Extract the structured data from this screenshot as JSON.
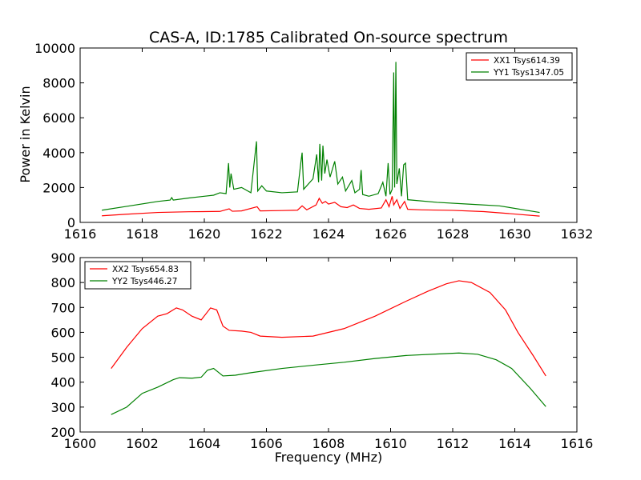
{
  "title": "CAS-A, ID:1785 Calibrated On-source spectrum",
  "ylabel": "Power in Kelvin",
  "xlabel": "Frequency (MHz)",
  "chart_data": [
    {
      "type": "line",
      "xlim": [
        1616,
        1632
      ],
      "ylim": [
        0,
        10000
      ],
      "xticks": [
        "1616",
        "1618",
        "1620",
        "1622",
        "1624",
        "1626",
        "1628",
        "1630",
        "1632"
      ],
      "yticks": [
        "0",
        "2000",
        "4000",
        "6000",
        "8000",
        "10000"
      ],
      "legend_position": "top-right",
      "grid": false,
      "series": [
        {
          "name": "XX1 Tsys614.39",
          "color": "#ff0000",
          "points": [
            [
              1616.7,
              380
            ],
            [
              1617.5,
              470
            ],
            [
              1618.5,
              570
            ],
            [
              1619.5,
              610
            ],
            [
              1620.5,
              630
            ],
            [
              1620.8,
              780
            ],
            [
              1620.9,
              640
            ],
            [
              1621.2,
              660
            ],
            [
              1621.7,
              900
            ],
            [
              1621.8,
              660
            ],
            [
              1622.5,
              680
            ],
            [
              1623.0,
              700
            ],
            [
              1623.15,
              950
            ],
            [
              1623.3,
              720
            ],
            [
              1623.6,
              1000
            ],
            [
              1623.7,
              1380
            ],
            [
              1623.8,
              1100
            ],
            [
              1623.9,
              1200
            ],
            [
              1624.0,
              1050
            ],
            [
              1624.2,
              1150
            ],
            [
              1624.4,
              900
            ],
            [
              1624.6,
              850
            ],
            [
              1624.8,
              1000
            ],
            [
              1625.0,
              800
            ],
            [
              1625.3,
              750
            ],
            [
              1625.7,
              830
            ],
            [
              1625.85,
              1300
            ],
            [
              1625.95,
              900
            ],
            [
              1626.05,
              1500
            ],
            [
              1626.1,
              1000
            ],
            [
              1626.2,
              1300
            ],
            [
              1626.3,
              800
            ],
            [
              1626.45,
              1200
            ],
            [
              1626.55,
              750
            ],
            [
              1627.0,
              720
            ],
            [
              1628.0,
              690
            ],
            [
              1629.0,
              620
            ],
            [
              1630.0,
              480
            ],
            [
              1630.8,
              360
            ]
          ]
        },
        {
          "name": "YY1 Tsys1347.05",
          "color": "#008000",
          "points": [
            [
              1616.7,
              700
            ],
            [
              1617.5,
              920
            ],
            [
              1618.5,
              1200
            ],
            [
              1618.9,
              1280
            ],
            [
              1618.95,
              1420
            ],
            [
              1619.0,
              1280
            ],
            [
              1619.5,
              1400
            ],
            [
              1620.0,
              1500
            ],
            [
              1620.3,
              1560
            ],
            [
              1620.5,
              1700
            ],
            [
              1620.7,
              1650
            ],
            [
              1620.78,
              3400
            ],
            [
              1620.82,
              2000
            ],
            [
              1620.86,
              2800
            ],
            [
              1620.95,
              1900
            ],
            [
              1621.2,
              2000
            ],
            [
              1621.5,
              1700
            ],
            [
              1621.68,
              4650
            ],
            [
              1621.72,
              1800
            ],
            [
              1621.85,
              2100
            ],
            [
              1622.0,
              1800
            ],
            [
              1622.5,
              1700
            ],
            [
              1623.0,
              1750
            ],
            [
              1623.1,
              3300
            ],
            [
              1623.15,
              4000
            ],
            [
              1623.2,
              1900
            ],
            [
              1623.5,
              2500
            ],
            [
              1623.62,
              3900
            ],
            [
              1623.68,
              2300
            ],
            [
              1623.72,
              4500
            ],
            [
              1623.78,
              2400
            ],
            [
              1623.82,
              4400
            ],
            [
              1623.88,
              2800
            ],
            [
              1623.95,
              3600
            ],
            [
              1624.05,
              2600
            ],
            [
              1624.2,
              3500
            ],
            [
              1624.3,
              2200
            ],
            [
              1624.45,
              2600
            ],
            [
              1624.55,
              1800
            ],
            [
              1624.75,
              2400
            ],
            [
              1624.85,
              1700
            ],
            [
              1625.0,
              1900
            ],
            [
              1625.05,
              3000
            ],
            [
              1625.1,
              1600
            ],
            [
              1625.3,
              1500
            ],
            [
              1625.6,
              1650
            ],
            [
              1625.75,
              2300
            ],
            [
              1625.85,
              1500
            ],
            [
              1625.92,
              3400
            ],
            [
              1625.98,
              1600
            ],
            [
              1626.05,
              1900
            ],
            [
              1626.1,
              8600
            ],
            [
              1626.13,
              2000
            ],
            [
              1626.17,
              9200
            ],
            [
              1626.2,
              2200
            ],
            [
              1626.28,
              3100
            ],
            [
              1626.35,
              1500
            ],
            [
              1626.42,
              3300
            ],
            [
              1626.48,
              3400
            ],
            [
              1626.55,
              1300
            ],
            [
              1627.5,
              1150
            ],
            [
              1628.5,
              1050
            ],
            [
              1629.5,
              950
            ],
            [
              1630.8,
              570
            ]
          ]
        }
      ]
    },
    {
      "type": "line",
      "xlim": [
        1600,
        1616
      ],
      "ylim": [
        200,
        900
      ],
      "xticks": [
        "1600",
        "1602",
        "1604",
        "1606",
        "1608",
        "1610",
        "1612",
        "1614",
        "1616"
      ],
      "yticks": [
        "200",
        "300",
        "400",
        "500",
        "600",
        "700",
        "800",
        "900"
      ],
      "legend_position": "top-left",
      "grid": false,
      "series": [
        {
          "name": "XX2 Tsys654.83",
          "color": "#ff0000",
          "points": [
            [
              1601.0,
              455
            ],
            [
              1601.5,
              540
            ],
            [
              1602.0,
              615
            ],
            [
              1602.5,
              665
            ],
            [
              1602.8,
              675
            ],
            [
              1603.1,
              698
            ],
            [
              1603.3,
              690
            ],
            [
              1603.6,
              665
            ],
            [
              1603.9,
              650
            ],
            [
              1604.2,
              698
            ],
            [
              1604.4,
              690
            ],
            [
              1604.6,
              625
            ],
            [
              1604.8,
              608
            ],
            [
              1605.2,
              605
            ],
            [
              1605.5,
              600
            ],
            [
              1605.8,
              585
            ],
            [
              1606.5,
              580
            ],
            [
              1607.5,
              585
            ],
            [
              1608.5,
              615
            ],
            [
              1609.5,
              665
            ],
            [
              1610.5,
              725
            ],
            [
              1611.2,
              765
            ],
            [
              1611.8,
              795
            ],
            [
              1612.2,
              807
            ],
            [
              1612.6,
              800
            ],
            [
              1613.2,
              760
            ],
            [
              1613.7,
              690
            ],
            [
              1614.1,
              600
            ],
            [
              1614.6,
              505
            ],
            [
              1615.0,
              425
            ]
          ]
        },
        {
          "name": "YY2 Tsys446.27",
          "color": "#008000",
          "points": [
            [
              1601.0,
              270
            ],
            [
              1601.5,
              300
            ],
            [
              1602.0,
              355
            ],
            [
              1602.5,
              380
            ],
            [
              1603.0,
              410
            ],
            [
              1603.2,
              418
            ],
            [
              1603.6,
              416
            ],
            [
              1603.9,
              420
            ],
            [
              1604.1,
              448
            ],
            [
              1604.3,
              455
            ],
            [
              1604.6,
              425
            ],
            [
              1605.0,
              428
            ],
            [
              1605.5,
              438
            ],
            [
              1606.5,
              455
            ],
            [
              1607.5,
              468
            ],
            [
              1608.5,
              480
            ],
            [
              1609.5,
              495
            ],
            [
              1610.5,
              507
            ],
            [
              1611.5,
              513
            ],
            [
              1612.2,
              517
            ],
            [
              1612.8,
              512
            ],
            [
              1613.4,
              490
            ],
            [
              1613.9,
              455
            ],
            [
              1614.5,
              375
            ],
            [
              1615.0,
              302
            ]
          ]
        }
      ]
    }
  ]
}
